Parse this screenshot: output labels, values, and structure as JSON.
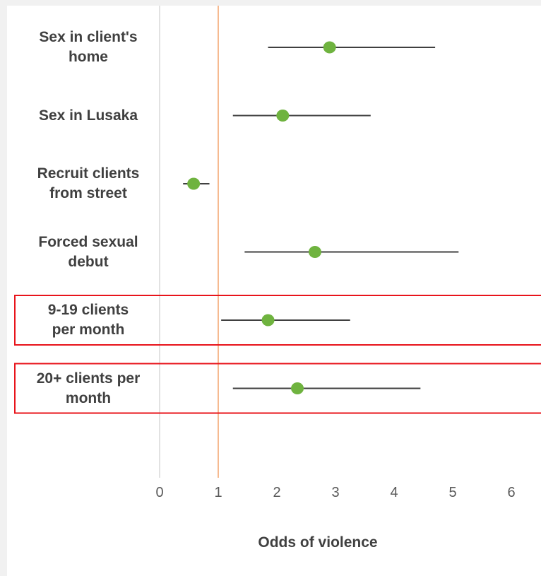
{
  "chart_data": {
    "type": "forest",
    "xlabel": "Odds of violence",
    "xlim": [
      0,
      6
    ],
    "xticks": [
      "0",
      "1",
      "2",
      "3",
      "4",
      "5",
      "6"
    ],
    "reference_line": 1,
    "categories": [
      "Sex in client's\nhome",
      "Sex in Lusaka",
      "Recruit clients\nfrom street",
      "Forced sexual\ndebut",
      "9-19 clients\nper month",
      "20+ clients per\nmonth"
    ],
    "estimates": [
      2.9,
      2.1,
      0.58,
      2.65,
      1.85,
      2.35
    ],
    "lower": [
      1.85,
      1.25,
      0.4,
      1.45,
      1.05,
      1.25
    ],
    "upper": [
      4.7,
      3.6,
      0.85,
      5.1,
      3.25,
      4.45
    ],
    "highlighted": [
      "9-19 clients\nper month",
      "20+ clients per\nmonth"
    ],
    "colors": {
      "point": "#6fb33f",
      "ci_line": "#404040",
      "reference_line": "#f4a36c",
      "axis_line": "#d9d9d9",
      "highlight_box": "#e8141b"
    }
  }
}
